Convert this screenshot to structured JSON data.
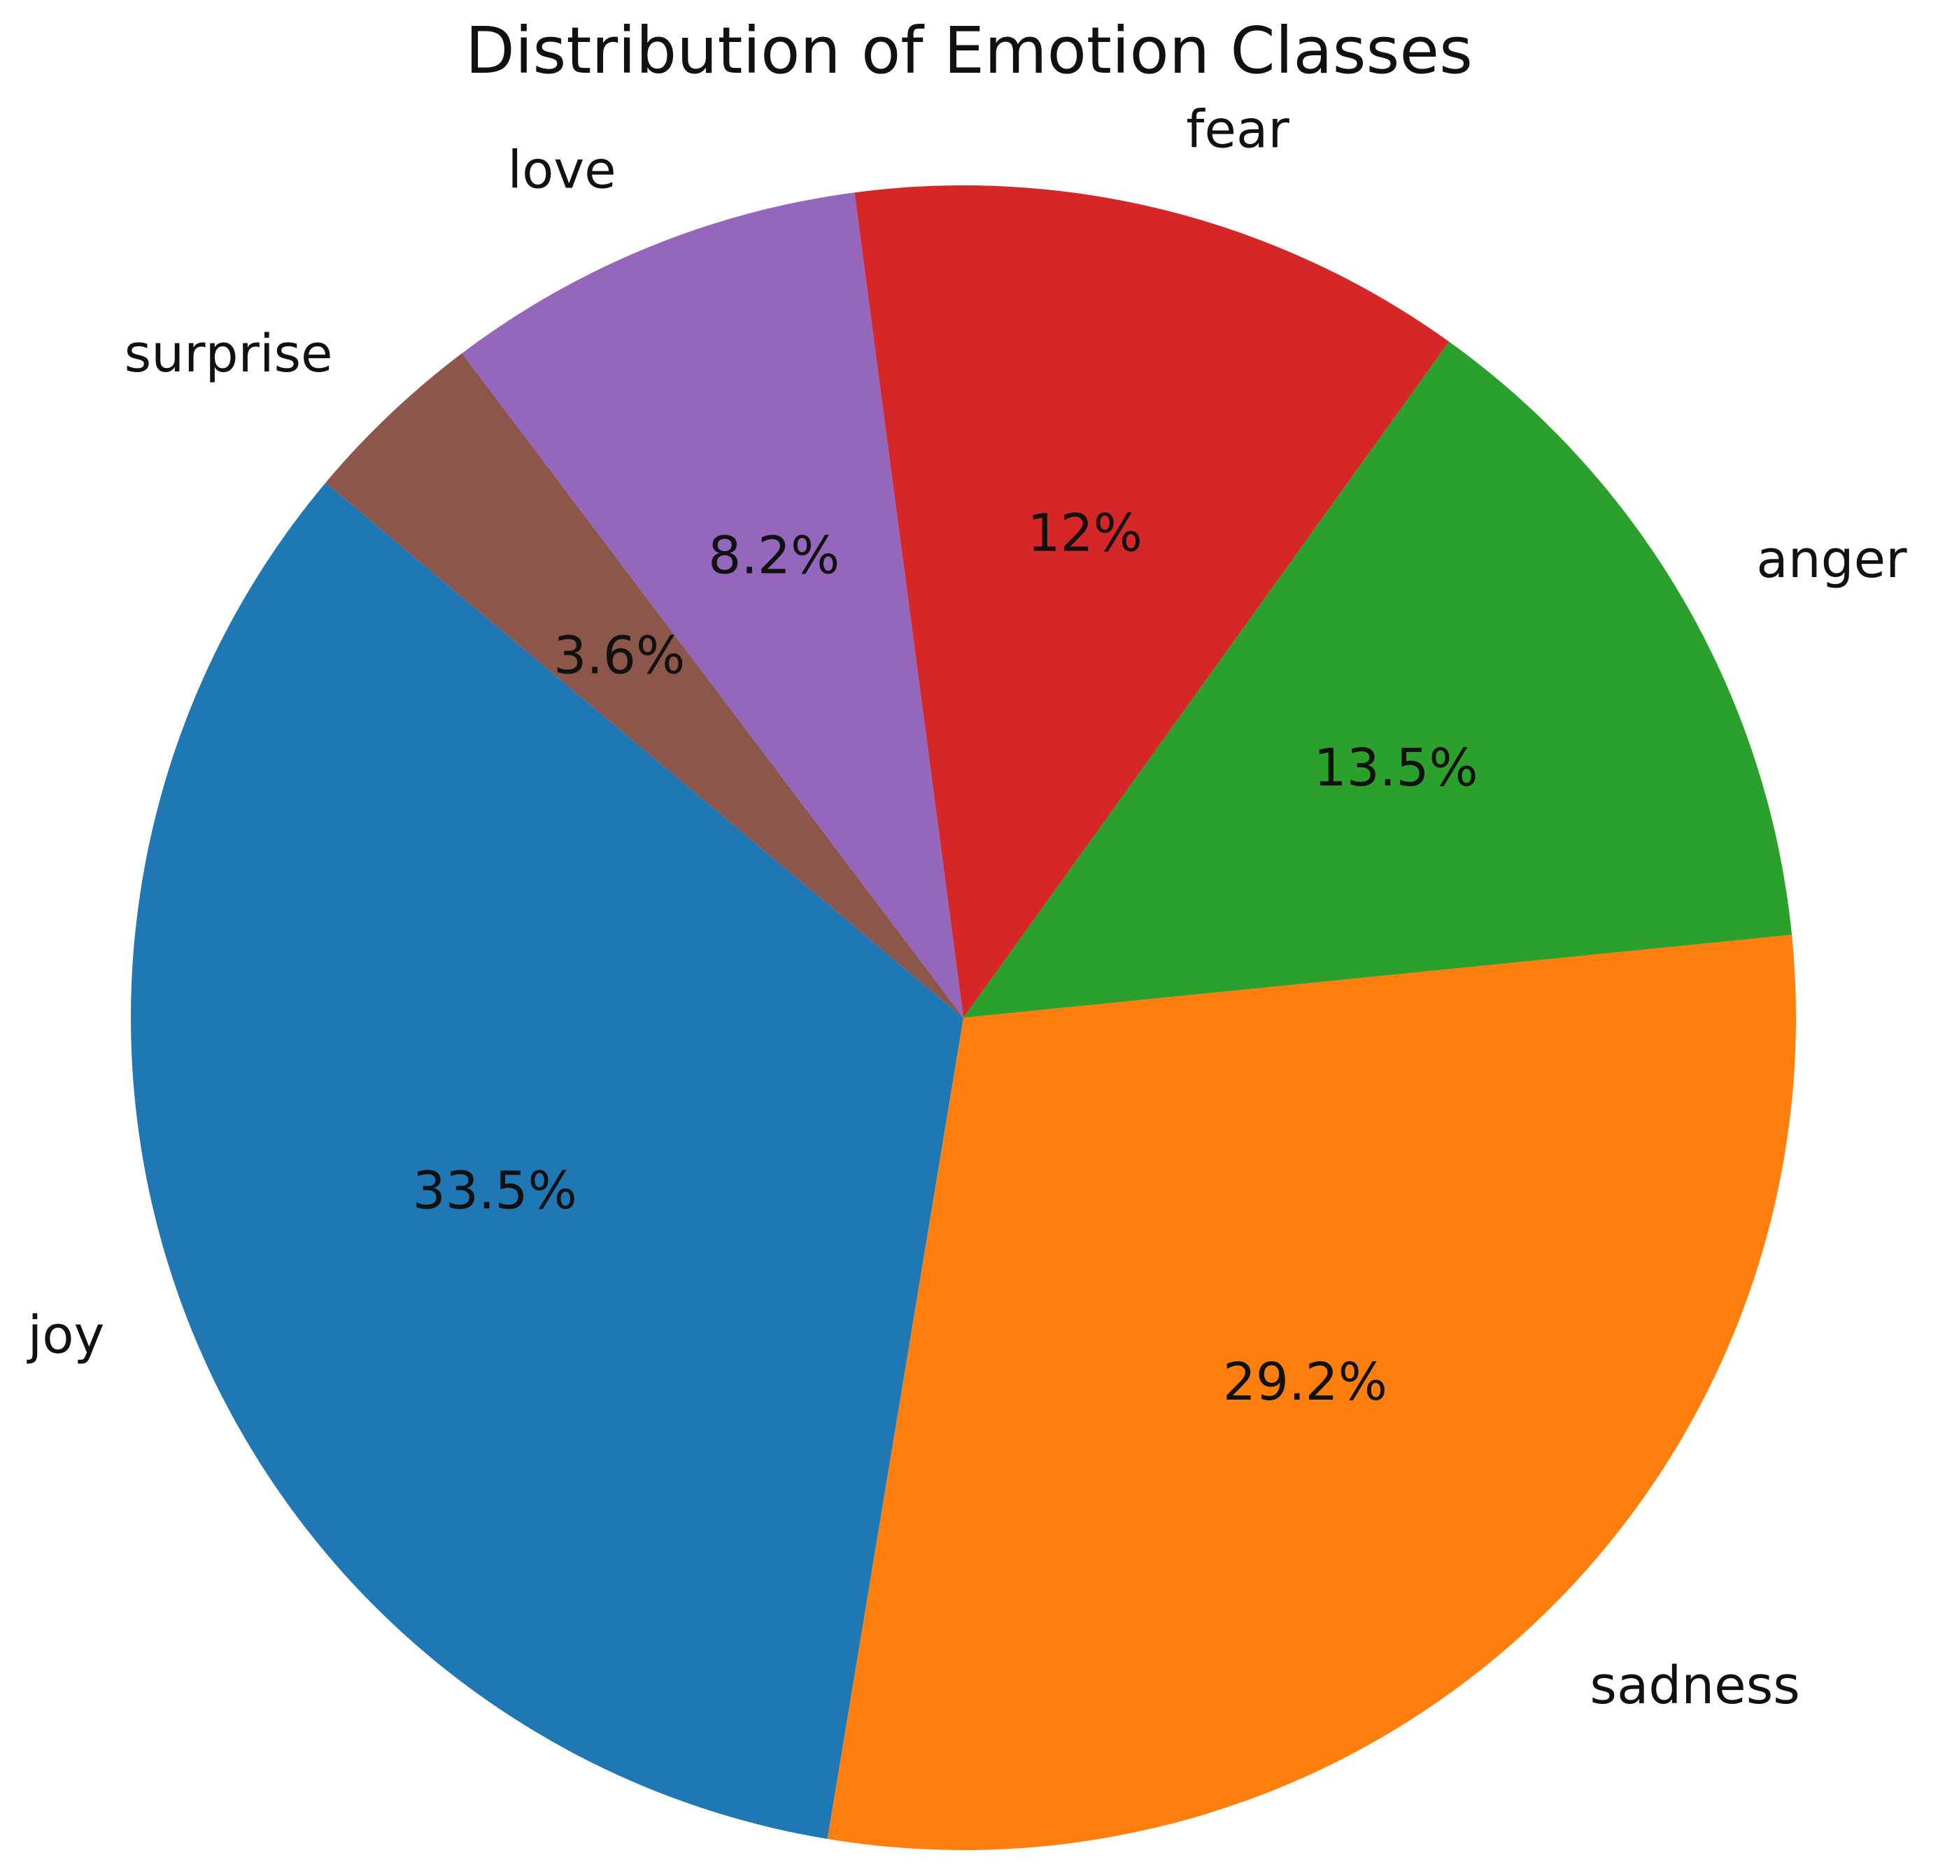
{
  "chart_data": {
    "type": "pie",
    "title": "Distribution of Emotion Classes",
    "start_angle_deg": 140,
    "direction": "counterclockwise",
    "slices": [
      {
        "label": "joy",
        "pct_label": "33.5%",
        "value": 33.5,
        "color": "#1f77b4"
      },
      {
        "label": "sadness",
        "pct_label": "29.2%",
        "value": 29.2,
        "color": "#ff7f0e"
      },
      {
        "label": "anger",
        "pct_label": "13.5%",
        "value": 13.5,
        "color": "#2ca02c"
      },
      {
        "label": "fear",
        "pct_label": "12%",
        "value": 12.0,
        "color": "#d62728"
      },
      {
        "label": "love",
        "pct_label": "8.2%",
        "value": 8.2,
        "color": "#9467bd"
      },
      {
        "label": "surprise",
        "pct_label": "3.6%",
        "value": 3.6,
        "color": "#8c564b"
      }
    ]
  }
}
